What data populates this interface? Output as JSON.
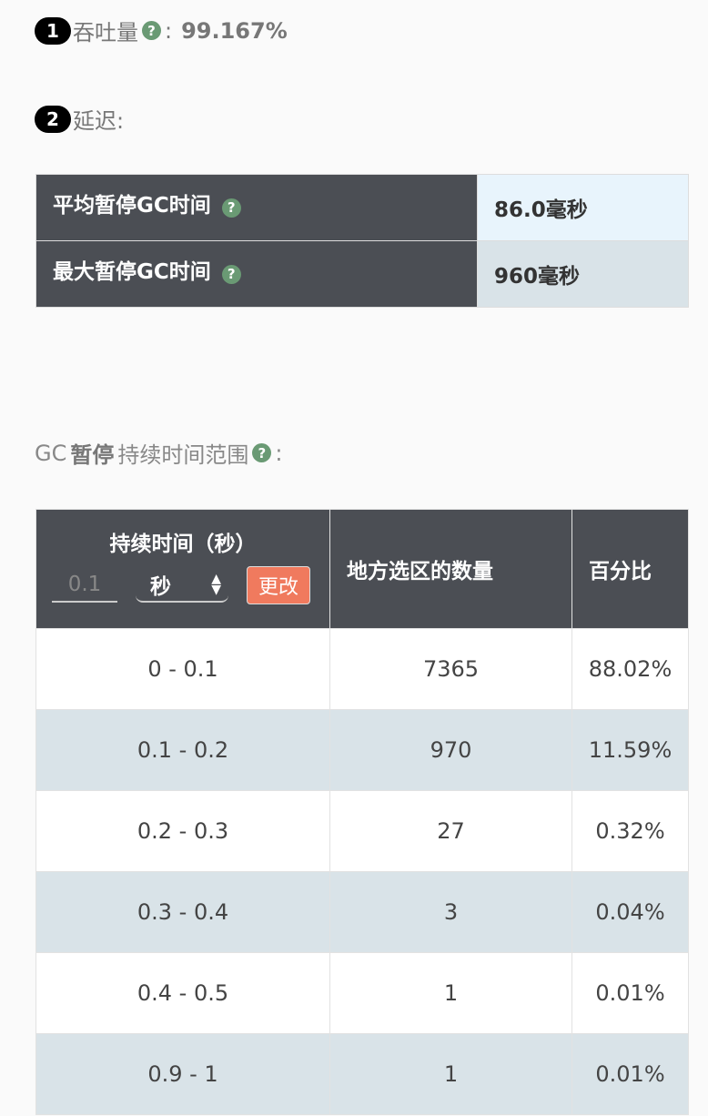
{
  "throughput": {
    "badge": "1",
    "label": "吞吐量",
    "help": "?",
    "colon": ":",
    "value": "99.167%"
  },
  "latency": {
    "badge": "2",
    "label": "延迟:",
    "rows": [
      {
        "label": "平均暂停GC时间",
        "help": "?",
        "value": "86.0毫秒"
      },
      {
        "label": "最大暂停GC时间",
        "help": "?",
        "value": "960毫秒"
      }
    ]
  },
  "pause_range": {
    "title_prefix": "GC",
    "title_bold": "暂停",
    "title_suffix": "持续时间范围",
    "help": "?",
    "colon": ":",
    "headers": {
      "duration": "持续时间（秒）",
      "count": "地方选区的数量",
      "percent": "百分比"
    },
    "controls": {
      "input_placeholder": "0.1",
      "unit": "秒",
      "button": "更改"
    },
    "rows": [
      {
        "range": "0 - 0.1",
        "count": "7365",
        "percent": "88.02%"
      },
      {
        "range": "0.1 - 0.2",
        "count": "970",
        "percent": "11.59%"
      },
      {
        "range": "0.2 - 0.3",
        "count": "27",
        "percent": "0.32%"
      },
      {
        "range": "0.3 - 0.4",
        "count": "3",
        "percent": "0.04%"
      },
      {
        "range": "0.4 - 0.5",
        "count": "1",
        "percent": "0.01%"
      },
      {
        "range": "0.9 - 1",
        "count": "1",
        "percent": "0.01%"
      }
    ]
  }
}
